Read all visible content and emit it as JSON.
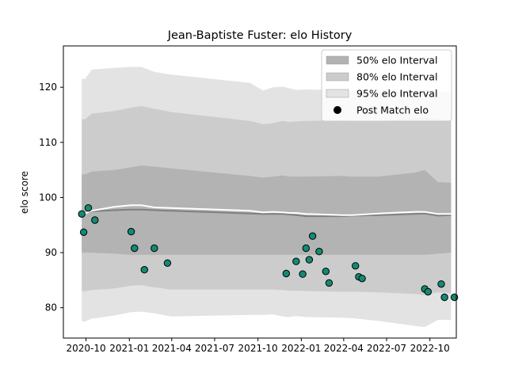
{
  "chart_data": {
    "type": "line",
    "title": "Jean-Baptiste Fuster: elo History",
    "xlabel": "",
    "ylabel": "elo score",
    "x_ticks": [
      "2020-10",
      "2021-01",
      "2021-04",
      "2021-07",
      "2021-10",
      "2022-01",
      "2022-04",
      "2022-07",
      "2022-10"
    ],
    "y_ticks": [
      80,
      90,
      100,
      110,
      120
    ],
    "xlim": [
      "2020-08-14",
      "2022-11-26"
    ],
    "ylim": [
      74.5,
      127.5
    ],
    "grid": false,
    "legend_position": "top-right",
    "legend": [
      "50% elo Interval",
      "80% elo Interval",
      "95% elo Interval",
      "Post Match elo"
    ],
    "colors": {
      "band_50": "#b3b3b3",
      "band_80": "#cccccc",
      "band_95": "#e3e3e3",
      "mean_line": "#ffffff",
      "median_line": "#808080",
      "point_fill": "#138a72",
      "point_edge": "#000000"
    },
    "band_dates": [
      "2020-09-22",
      "2020-09-29",
      "2020-10-13",
      "2020-12-01",
      "2021-01-05",
      "2021-01-26",
      "2021-02-23",
      "2021-03-30",
      "2021-09-14",
      "2021-10-12",
      "2021-11-02",
      "2021-11-23",
      "2021-12-07",
      "2021-12-21",
      "2022-01-11",
      "2022-03-29",
      "2022-04-19",
      "2022-06-14",
      "2022-08-30",
      "2022-09-20",
      "2022-10-18",
      "2022-11-15"
    ],
    "series": [
      {
        "name": "95% elo Interval",
        "lower": [
          77.5,
          77.5,
          78.0,
          78.6,
          79.2,
          79.3,
          79.0,
          78.4,
          78.7,
          78.7,
          78.8,
          78.4,
          78.3,
          78.5,
          78.3,
          78.2,
          78.1,
          77.6,
          76.7,
          76.5,
          77.8,
          77.8
        ],
        "upper": [
          121.5,
          121.5,
          123.2,
          123.5,
          123.7,
          123.7,
          122.8,
          122.3,
          120.8,
          119.4,
          120.0,
          120.1,
          119.8,
          119.5,
          119.6,
          119.5,
          119.3,
          119.0,
          119.4,
          119.6,
          119.3,
          119.1
        ]
      },
      {
        "name": "80% elo Interval",
        "lower": [
          83.0,
          83.0,
          83.2,
          83.5,
          84.0,
          84.1,
          83.7,
          83.3,
          83.3,
          83.3,
          83.3,
          83.2,
          83.1,
          83.1,
          83.0,
          82.9,
          82.9,
          82.8,
          82.5,
          82.3,
          82.8,
          82.6
        ],
        "upper": [
          114.2,
          114.2,
          115.2,
          115.7,
          116.3,
          116.6,
          116.1,
          115.5,
          113.9,
          113.3,
          113.5,
          113.9,
          113.7,
          113.8,
          113.9,
          114.0,
          113.9,
          113.9,
          114.4,
          114.6,
          114.2,
          114.1
        ]
      },
      {
        "name": "50% elo Interval",
        "lower": [
          90.0,
          90.0,
          90.0,
          89.8,
          89.6,
          89.6,
          89.6,
          89.6,
          89.6,
          89.6,
          89.6,
          89.6,
          89.6,
          89.6,
          89.6,
          89.6,
          89.6,
          89.6,
          89.6,
          89.6,
          89.8,
          90.0
        ],
        "upper": [
          104.2,
          104.2,
          104.7,
          105.0,
          105.5,
          105.8,
          105.6,
          105.3,
          103.9,
          103.6,
          103.8,
          104.0,
          103.8,
          103.8,
          103.8,
          103.9,
          103.8,
          103.8,
          104.5,
          105.0,
          102.8,
          102.7
        ]
      },
      {
        "name": "",
        "values": [
          97.1,
          97.1,
          97.5,
          97.7,
          97.8,
          97.8,
          97.7,
          97.6,
          97.1,
          97.0,
          97.0,
          97.0,
          96.9,
          96.8,
          96.6,
          96.6,
          96.7,
          96.8,
          97.0,
          97.1,
          96.7,
          96.8
        ]
      },
      {
        "name": "",
        "values": [
          97.1,
          97.1,
          97.6,
          98.3,
          98.6,
          98.6,
          98.2,
          98.1,
          97.6,
          97.3,
          97.4,
          97.3,
          97.2,
          97.2,
          97.0,
          96.8,
          96.8,
          97.1,
          97.4,
          97.4,
          97.0,
          97.0
        ]
      }
    ],
    "points": {
      "name": "Post Match elo",
      "x": [
        "2020-09-22",
        "2020-09-26",
        "2020-10-06",
        "2020-10-20",
        "2021-01-05",
        "2021-01-12",
        "2021-02-02",
        "2021-02-23",
        "2021-03-23",
        "2021-11-30",
        "2021-12-21",
        "2022-01-04",
        "2022-01-11",
        "2022-01-18",
        "2022-01-25",
        "2022-02-08",
        "2022-02-22",
        "2022-03-01",
        "2022-04-26",
        "2022-05-03",
        "2022-05-10",
        "2022-09-20",
        "2022-09-27",
        "2022-10-25",
        "2022-11-01",
        "2022-11-22"
      ],
      "y": [
        97.0,
        93.7,
        98.1,
        95.9,
        93.8,
        90.8,
        86.9,
        90.8,
        88.1,
        86.2,
        88.4,
        86.1,
        90.8,
        88.7,
        93.0,
        90.2,
        86.6,
        84.5,
        87.6,
        85.6,
        85.3,
        83.4,
        82.9,
        84.3,
        81.9,
        81.9
      ]
    }
  }
}
